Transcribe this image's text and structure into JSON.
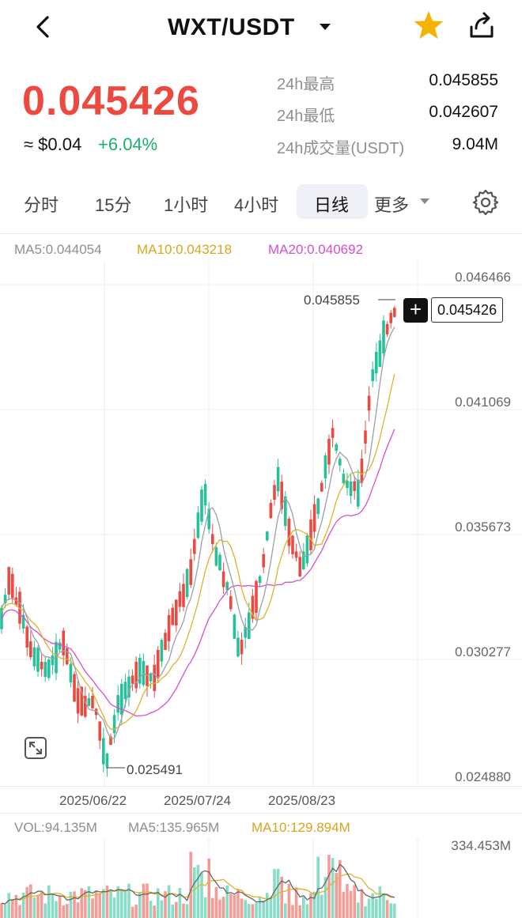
{
  "header": {
    "pair": "WXT/USDT",
    "back_icon": "back-arrow-icon",
    "star_icon": "star-icon",
    "share_icon": "share-icon"
  },
  "price": {
    "last": "0.045426",
    "approx_usd": "≈ $0.04",
    "change_pct": "+6.04%"
  },
  "stats": [
    {
      "label": "24h最高",
      "value": "0.045855"
    },
    {
      "label": "24h最低",
      "value": "0.042607"
    },
    {
      "label": "24h成交量(USDT)",
      "value": "9.04M"
    }
  ],
  "tabs": [
    "分时",
    "15分",
    "1小时",
    "4小时",
    "日线",
    "更多"
  ],
  "active_tab": "日线",
  "legend": {
    "ma5": "MA5:0.044054",
    "ma10": "MA10:0.043218",
    "ma20": "MA20:0.040692"
  },
  "volume_legend": {
    "vol": "VOL:94.135M",
    "ma5": "MA5:135.965M",
    "ma10": "MA10:129.894M"
  },
  "colors": {
    "up": "#26c19a",
    "down": "#ec4a41",
    "ma5": "#9aa0a6",
    "ma10": "#e0b22a",
    "ma20": "#d64fd0",
    "star": "#f5b300"
  },
  "chart_data": {
    "type": "candlestick",
    "y_ticks": [
      "0.046466",
      "0.041069",
      "0.035673",
      "0.030277",
      "0.024880"
    ],
    "x_ticks": [
      "2025/06/22",
      "2025/07/24",
      "2025/08/23"
    ],
    "high_label": "0.045855",
    "low_label": "0.025491",
    "current_price_label": "0.045426",
    "volume_max_label": "334.453M",
    "ylim": [
      0.02488,
      0.046466
    ]
  }
}
